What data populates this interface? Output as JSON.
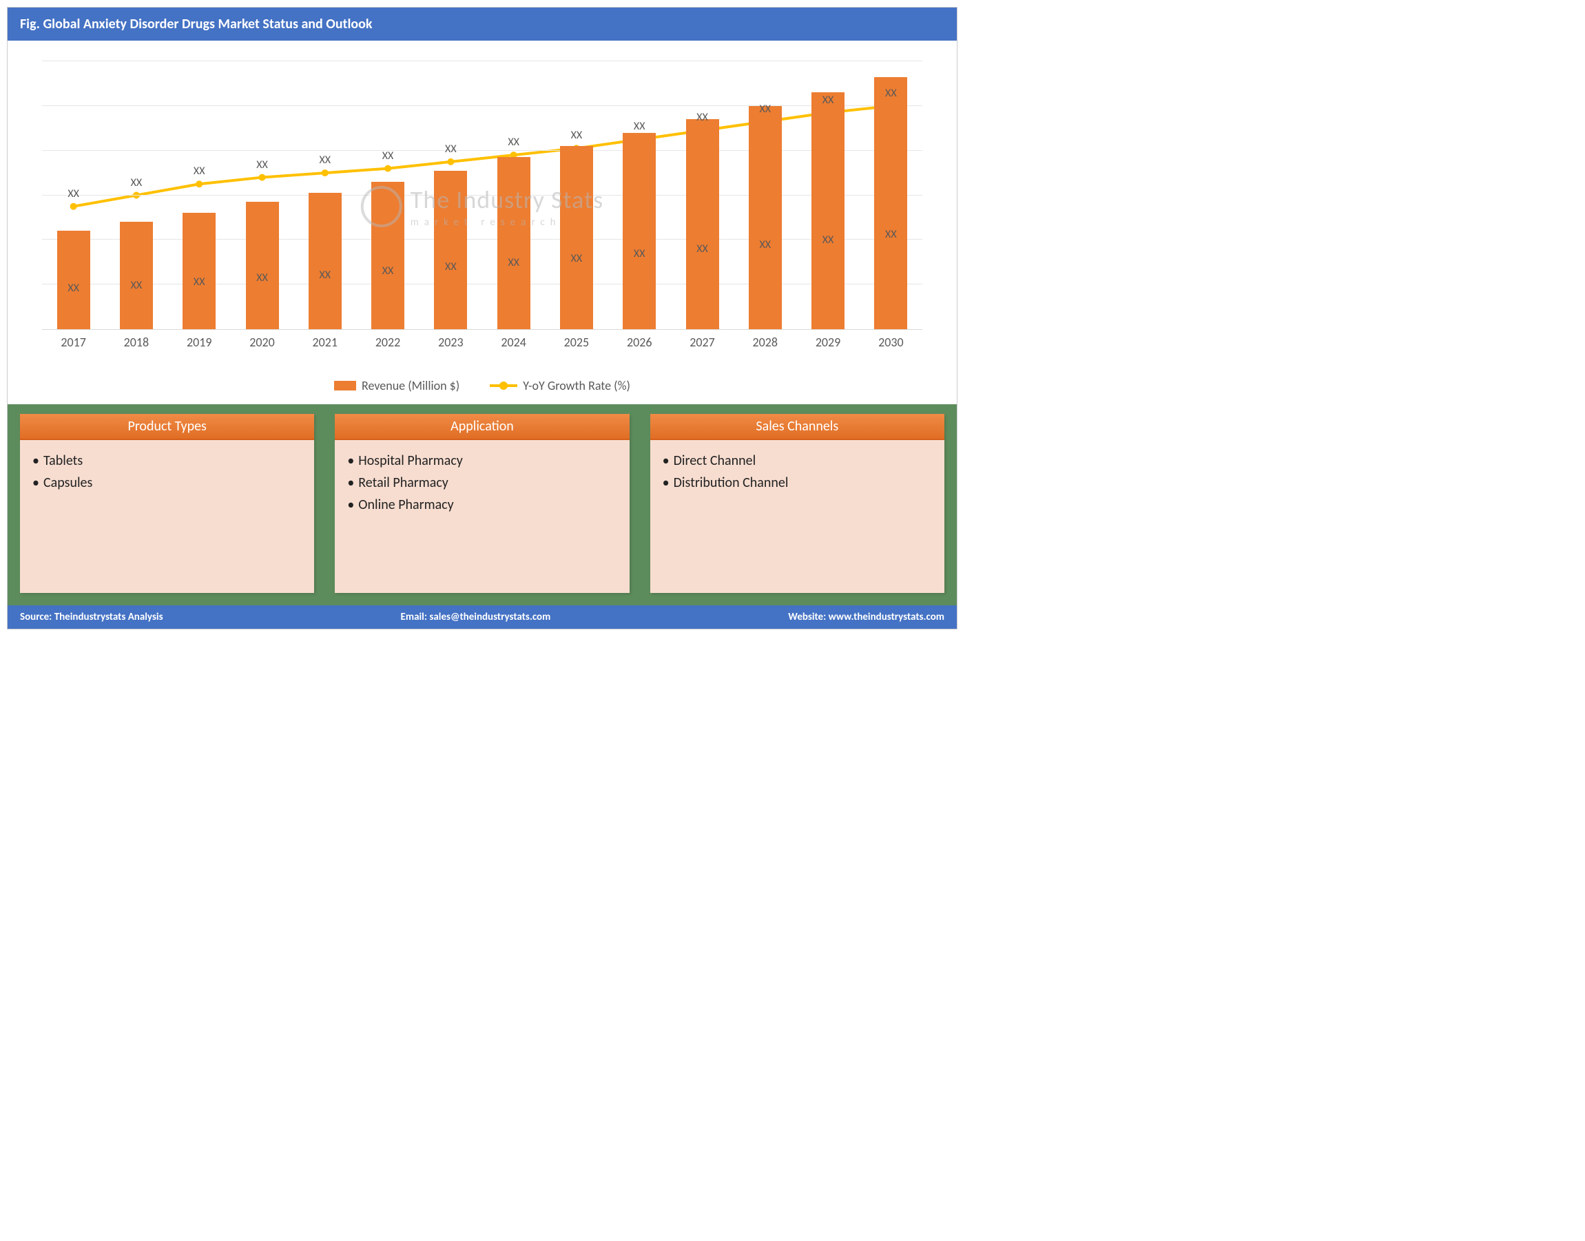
{
  "title": "Fig. Global Anxiety Disorder Drugs Market Status and Outlook",
  "chart": {
    "type": "bar+line",
    "categories": [
      "2017",
      "2018",
      "2019",
      "2020",
      "2021",
      "2022",
      "2023",
      "2024",
      "2025",
      "2026",
      "2027",
      "2028",
      "2029",
      "2030"
    ],
    "bar_series": {
      "name": "Revenue (Million $)",
      "values": [
        44,
        48,
        52,
        57,
        61,
        66,
        71,
        77,
        82,
        88,
        94,
        100,
        106,
        113
      ],
      "color": "#ed7d31",
      "in_bar_label": "XX",
      "top_label": "XX"
    },
    "line_series": {
      "name": "Y-oY Growth Rate (%)",
      "values": [
        55,
        60,
        65,
        68,
        70,
        72,
        75,
        78,
        81,
        85,
        89,
        93,
        97,
        100
      ],
      "color": "#ffc000",
      "marker": "circle",
      "marker_size": 10,
      "line_width": 4,
      "top_label": "XX"
    },
    "y_max": 120,
    "grid_steps": 6,
    "grid_color": "#e6e6e6",
    "background": "#ffffff",
    "label_color": "#595959",
    "label_fontsize": 16,
    "xaxis_fontsize": 18
  },
  "legend": {
    "bar": "Revenue (Million $)",
    "line": "Y-oY Growth Rate (%)"
  },
  "watermark": {
    "main": "The Industry Stats",
    "sub": "market   research"
  },
  "info_boxes": [
    {
      "title": "Product Types",
      "items": [
        "Tablets",
        "Capsules"
      ]
    },
    {
      "title": "Application",
      "items": [
        "Hospital Pharmacy",
        "Retail Pharmacy",
        "Online Pharmacy"
      ]
    },
    {
      "title": "Sales Channels",
      "items": [
        "Direct Channel",
        "Distribution Channel"
      ]
    }
  ],
  "footer": {
    "source_label": "Source:",
    "source": "Theindustrystats Analysis",
    "email_label": "Email:",
    "email": "sales@theindustrystats.com",
    "website_label": "Website:",
    "website": "www.theindustrystats.com"
  },
  "colors": {
    "header_bg": "#4472c4",
    "panel_bg": "#5d8c5c",
    "box_bg": "#f7ddd0",
    "box_head": "#ed7d31"
  }
}
